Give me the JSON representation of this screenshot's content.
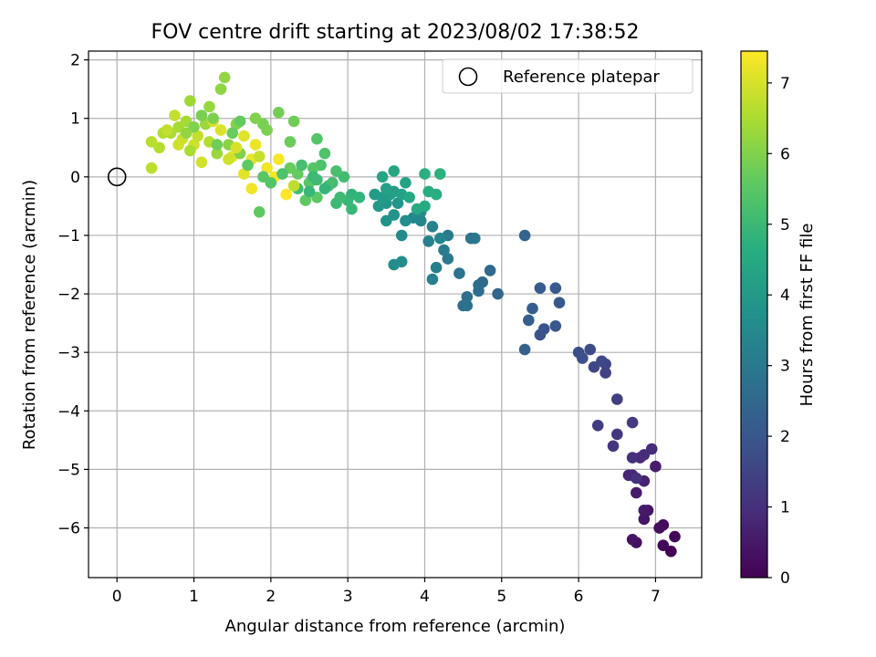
{
  "chart_data": {
    "type": "scatter",
    "title": "FOV centre drift starting at 2023/08/02 17:38:52",
    "xlabel": "Angular distance from reference (arcmin)",
    "ylabel": "Rotation from reference (arcmin)",
    "xlim": [
      -0.37,
      7.6
    ],
    "ylim": [
      -6.85,
      2.15
    ],
    "xticks": [
      0,
      1,
      2,
      3,
      4,
      5,
      6,
      7
    ],
    "yticks": [
      2,
      1,
      0,
      -1,
      -2,
      -3,
      -4,
      -5,
      -6
    ],
    "grid": true,
    "legend": {
      "placement": "top-right",
      "entries": [
        "Reference platepar"
      ]
    },
    "reference_point": {
      "x": 0,
      "y": 0,
      "label": "Reference platepar"
    },
    "colorbar": {
      "label": "Hours from first FF file",
      "range": [
        0,
        7.45
      ],
      "ticks": [
        0,
        1,
        2,
        3,
        4,
        5,
        6,
        7
      ],
      "colormap": "viridis"
    },
    "points": [
      {
        "x": 7.2,
        "y": -6.4,
        "c": 0.0
      },
      {
        "x": 7.25,
        "y": -6.15,
        "c": 0.1
      },
      {
        "x": 7.1,
        "y": -6.3,
        "c": 0.15
      },
      {
        "x": 7.1,
        "y": -5.95,
        "c": 0.2
      },
      {
        "x": 7.05,
        "y": -6.0,
        "c": 0.25
      },
      {
        "x": 6.75,
        "y": -6.25,
        "c": 0.3
      },
      {
        "x": 6.7,
        "y": -6.2,
        "c": 0.35
      },
      {
        "x": 6.9,
        "y": -5.7,
        "c": 0.4
      },
      {
        "x": 6.85,
        "y": -5.85,
        "c": 0.45
      },
      {
        "x": 6.85,
        "y": -5.7,
        "c": 0.5
      },
      {
        "x": 6.75,
        "y": -5.4,
        "c": 0.55
      },
      {
        "x": 7.0,
        "y": -4.95,
        "c": 0.6
      },
      {
        "x": 6.85,
        "y": -5.2,
        "c": 0.7
      },
      {
        "x": 6.7,
        "y": -5.1,
        "c": 0.75
      },
      {
        "x": 6.65,
        "y": -5.1,
        "c": 0.8
      },
      {
        "x": 6.8,
        "y": -4.8,
        "c": 0.85
      },
      {
        "x": 6.95,
        "y": -4.65,
        "c": 0.9
      },
      {
        "x": 6.85,
        "y": -4.75,
        "c": 0.95
      },
      {
        "x": 6.7,
        "y": -4.8,
        "c": 1.0
      },
      {
        "x": 6.75,
        "y": -5.15,
        "c": 1.05
      },
      {
        "x": 6.45,
        "y": -4.6,
        "c": 1.1
      },
      {
        "x": 6.5,
        "y": -4.4,
        "c": 1.2
      },
      {
        "x": 6.7,
        "y": -4.2,
        "c": 1.25
      },
      {
        "x": 6.25,
        "y": -4.25,
        "c": 1.3
      },
      {
        "x": 6.5,
        "y": -3.8,
        "c": 1.35
      },
      {
        "x": 6.35,
        "y": -3.35,
        "c": 1.45
      },
      {
        "x": 6.35,
        "y": -3.2,
        "c": 1.5
      },
      {
        "x": 6.2,
        "y": -3.25,
        "c": 1.55
      },
      {
        "x": 6.3,
        "y": -3.15,
        "c": 1.6
      },
      {
        "x": 6.15,
        "y": -2.95,
        "c": 1.7
      },
      {
        "x": 6.0,
        "y": -3.0,
        "c": 1.75
      },
      {
        "x": 6.05,
        "y": -3.1,
        "c": 1.8
      },
      {
        "x": 5.5,
        "y": -2.7,
        "c": 1.85
      },
      {
        "x": 5.55,
        "y": -2.6,
        "c": 1.9
      },
      {
        "x": 5.7,
        "y": -2.55,
        "c": 2.0
      },
      {
        "x": 5.75,
        "y": -2.15,
        "c": 2.05
      },
      {
        "x": 5.7,
        "y": -1.9,
        "c": 2.1
      },
      {
        "x": 5.5,
        "y": -1.9,
        "c": 2.15
      },
      {
        "x": 5.4,
        "y": -2.25,
        "c": 2.2
      },
      {
        "x": 5.35,
        "y": -2.45,
        "c": 2.25
      },
      {
        "x": 5.3,
        "y": -2.95,
        "c": 2.3
      },
      {
        "x": 5.3,
        "y": -1.0,
        "c": 2.4
      },
      {
        "x": 4.95,
        "y": -2.0,
        "c": 2.45
      },
      {
        "x": 4.85,
        "y": -1.6,
        "c": 2.5
      },
      {
        "x": 4.75,
        "y": -1.8,
        "c": 2.55
      },
      {
        "x": 4.7,
        "y": -1.85,
        "c": 2.6
      },
      {
        "x": 4.7,
        "y": -1.95,
        "c": 2.65
      },
      {
        "x": 4.55,
        "y": -2.05,
        "c": 2.7
      },
      {
        "x": 4.5,
        "y": -2.2,
        "c": 2.75
      },
      {
        "x": 4.55,
        "y": -2.2,
        "c": 2.8
      },
      {
        "x": 4.45,
        "y": -1.65,
        "c": 2.85
      },
      {
        "x": 4.6,
        "y": -1.05,
        "c": 2.9
      },
      {
        "x": 4.65,
        "y": -1.05,
        "c": 2.95
      },
      {
        "x": 4.3,
        "y": -1.4,
        "c": 3.0
      },
      {
        "x": 4.25,
        "y": -1.25,
        "c": 3.05
      },
      {
        "x": 4.3,
        "y": -1.0,
        "c": 3.1
      },
      {
        "x": 4.15,
        "y": -1.55,
        "c": 3.15
      },
      {
        "x": 4.1,
        "y": -1.75,
        "c": 3.2
      },
      {
        "x": 4.05,
        "y": -1.1,
        "c": 3.25
      },
      {
        "x": 4.1,
        "y": -0.85,
        "c": 3.3
      },
      {
        "x": 4.2,
        "y": -1.05,
        "c": 3.35
      },
      {
        "x": 3.95,
        "y": -0.75,
        "c": 3.4
      },
      {
        "x": 3.85,
        "y": -0.7,
        "c": 3.45
      },
      {
        "x": 3.95,
        "y": -0.6,
        "c": 3.5
      },
      {
        "x": 3.7,
        "y": -1.0,
        "c": 3.55
      },
      {
        "x": 3.6,
        "y": -1.5,
        "c": 3.6
      },
      {
        "x": 3.7,
        "y": -1.45,
        "c": 3.65
      },
      {
        "x": 3.75,
        "y": -0.75,
        "c": 3.7
      },
      {
        "x": 3.6,
        "y": -0.65,
        "c": 3.75
      },
      {
        "x": 3.5,
        "y": -0.75,
        "c": 3.8
      },
      {
        "x": 3.65,
        "y": -0.45,
        "c": 3.85
      },
      {
        "x": 3.5,
        "y": -0.45,
        "c": 3.9
      },
      {
        "x": 3.4,
        "y": -0.5,
        "c": 3.95
      },
      {
        "x": 3.45,
        "y": -0.35,
        "c": 4.0
      },
      {
        "x": 3.35,
        "y": -0.3,
        "c": 4.05
      },
      {
        "x": 3.55,
        "y": -0.3,
        "c": 4.1
      },
      {
        "x": 3.6,
        "y": -0.25,
        "c": 4.15
      },
      {
        "x": 3.5,
        "y": -0.2,
        "c": 4.2
      },
      {
        "x": 3.7,
        "y": -0.3,
        "c": 4.25
      },
      {
        "x": 3.75,
        "y": -0.1,
        "c": 4.3
      },
      {
        "x": 3.45,
        "y": 0.0,
        "c": 4.35
      },
      {
        "x": 3.6,
        "y": 0.1,
        "c": 4.4
      },
      {
        "x": 3.8,
        "y": -0.35,
        "c": 4.45
      },
      {
        "x": 3.9,
        "y": -0.55,
        "c": 4.5
      },
      {
        "x": 4.0,
        "y": -0.5,
        "c": 4.55
      },
      {
        "x": 4.05,
        "y": -0.25,
        "c": 4.6
      },
      {
        "x": 4.15,
        "y": -0.3,
        "c": 4.65
      },
      {
        "x": 4.0,
        "y": 0.05,
        "c": 4.7
      },
      {
        "x": 4.2,
        "y": 0.05,
        "c": 4.75
      },
      {
        "x": 3.05,
        "y": -0.3,
        "c": 4.8
      },
      {
        "x": 3.15,
        "y": -0.35,
        "c": 4.85
      },
      {
        "x": 3.0,
        "y": -0.4,
        "c": 4.9
      },
      {
        "x": 3.05,
        "y": -0.55,
        "c": 4.95
      },
      {
        "x": 2.85,
        "y": -0.45,
        "c": 5.0
      },
      {
        "x": 2.9,
        "y": -0.35,
        "c": 5.05
      },
      {
        "x": 2.95,
        "y": 0.0,
        "c": 5.1
      },
      {
        "x": 2.8,
        "y": -0.1,
        "c": 5.15
      },
      {
        "x": 2.75,
        "y": -0.15,
        "c": 5.2
      },
      {
        "x": 2.85,
        "y": 0.1,
        "c": 5.25
      },
      {
        "x": 2.65,
        "y": 0.2,
        "c": 5.3
      },
      {
        "x": 2.7,
        "y": 0.4,
        "c": 5.35
      },
      {
        "x": 2.6,
        "y": 0.65,
        "c": 5.4
      },
      {
        "x": 2.55,
        "y": 0.15,
        "c": 5.45
      },
      {
        "x": 2.5,
        "y": -0.1,
        "c": 5.5
      },
      {
        "x": 2.6,
        "y": -0.35,
        "c": 5.55
      },
      {
        "x": 2.45,
        "y": -0.4,
        "c": 5.6
      },
      {
        "x": 2.35,
        "y": 0.05,
        "c": 5.65
      },
      {
        "x": 2.25,
        "y": 0.15,
        "c": 5.7
      },
      {
        "x": 2.25,
        "y": 0.6,
        "c": 5.75
      },
      {
        "x": 2.3,
        "y": 0.95,
        "c": 5.8
      },
      {
        "x": 2.1,
        "y": 1.1,
        "c": 5.85
      },
      {
        "x": 1.9,
        "y": 0.9,
        "c": 5.9
      },
      {
        "x": 1.95,
        "y": 0.8,
        "c": 5.95
      },
      {
        "x": 1.8,
        "y": 1.0,
        "c": 6.0
      },
      {
        "x": 1.55,
        "y": 0.9,
        "c": 6.05
      },
      {
        "x": 1.45,
        "y": 0.55,
        "c": 6.1
      },
      {
        "x": 1.35,
        "y": 1.5,
        "c": 6.15
      },
      {
        "x": 1.4,
        "y": 1.7,
        "c": 6.2
      },
      {
        "x": 1.2,
        "y": 1.2,
        "c": 6.25
      },
      {
        "x": 1.15,
        "y": 0.9,
        "c": 6.3
      },
      {
        "x": 0.95,
        "y": 1.3,
        "c": 6.35
      },
      {
        "x": 0.9,
        "y": 0.95,
        "c": 6.4
      },
      {
        "x": 0.8,
        "y": 0.85,
        "c": 6.45
      },
      {
        "x": 0.7,
        "y": 0.75,
        "c": 6.5
      },
      {
        "x": 0.6,
        "y": 0.75,
        "c": 6.55
      },
      {
        "x": 0.55,
        "y": 0.5,
        "c": 6.6
      },
      {
        "x": 0.45,
        "y": 0.6,
        "c": 6.65
      },
      {
        "x": 0.45,
        "y": 0.15,
        "c": 6.7
      },
      {
        "x": 0.65,
        "y": 0.8,
        "c": 6.75
      },
      {
        "x": 0.75,
        "y": 1.05,
        "c": 6.8
      },
      {
        "x": 0.85,
        "y": 0.65,
        "c": 6.85
      },
      {
        "x": 1.0,
        "y": 0.55,
        "c": 6.9
      },
      {
        "x": 1.1,
        "y": 0.25,
        "c": 6.95
      },
      {
        "x": 1.25,
        "y": 0.95,
        "c": 7.0
      },
      {
        "x": 1.35,
        "y": 0.8,
        "c": 7.05
      },
      {
        "x": 1.5,
        "y": 0.35,
        "c": 7.1
      },
      {
        "x": 1.65,
        "y": 0.05,
        "c": 7.15
      },
      {
        "x": 1.75,
        "y": 0.3,
        "c": 7.2
      },
      {
        "x": 1.8,
        "y": 0.55,
        "c": 7.25
      },
      {
        "x": 1.95,
        "y": 0.15,
        "c": 7.3
      },
      {
        "x": 2.05,
        "y": 0.0,
        "c": 7.35
      },
      {
        "x": 2.1,
        "y": 0.3,
        "c": 7.4
      },
      {
        "x": 2.2,
        "y": -0.3,
        "c": 7.45
      },
      {
        "x": 1.7,
        "y": 0.2,
        "c": 5.6
      },
      {
        "x": 1.9,
        "y": 0.0,
        "c": 5.5
      },
      {
        "x": 2.0,
        "y": -0.1,
        "c": 5.4
      },
      {
        "x": 1.6,
        "y": 0.4,
        "c": 6.0
      },
      {
        "x": 1.3,
        "y": 0.4,
        "c": 6.3
      },
      {
        "x": 1.2,
        "y": 0.6,
        "c": 6.6
      },
      {
        "x": 1.05,
        "y": 0.7,
        "c": 6.8
      },
      {
        "x": 0.95,
        "y": 0.45,
        "c": 6.5
      },
      {
        "x": 0.8,
        "y": 0.55,
        "c": 6.9
      },
      {
        "x": 1.85,
        "y": -0.6,
        "c": 5.6
      },
      {
        "x": 2.15,
        "y": 0.05,
        "c": 5.3
      },
      {
        "x": 2.4,
        "y": 0.2,
        "c": 5.2
      },
      {
        "x": 2.55,
        "y": 0.0,
        "c": 5.0
      },
      {
        "x": 2.7,
        "y": -0.2,
        "c": 4.9
      },
      {
        "x": 2.5,
        "y": -0.25,
        "c": 4.95
      },
      {
        "x": 2.6,
        "y": -0.05,
        "c": 5.05
      },
      {
        "x": 2.35,
        "y": -0.2,
        "c": 5.1
      },
      {
        "x": 1.75,
        "y": -0.2,
        "c": 7.3
      },
      {
        "x": 1.55,
        "y": 0.5,
        "c": 7.0
      },
      {
        "x": 1.65,
        "y": 0.7,
        "c": 7.1
      },
      {
        "x": 1.85,
        "y": 0.35,
        "c": 6.8
      },
      {
        "x": 1.45,
        "y": 0.3,
        "c": 6.9
      },
      {
        "x": 2.3,
        "y": -0.15,
        "c": 6.7
      },
      {
        "x": 1.0,
        "y": 0.85,
        "c": 6.0
      },
      {
        "x": 1.1,
        "y": 1.05,
        "c": 5.9
      },
      {
        "x": 0.9,
        "y": 0.75,
        "c": 6.2
      },
      {
        "x": 1.3,
        "y": 0.55,
        "c": 5.8
      },
      {
        "x": 1.5,
        "y": 0.75,
        "c": 5.7
      },
      {
        "x": 1.6,
        "y": 0.95,
        "c": 5.65
      },
      {
        "x": 1.25,
        "y": 1.0,
        "c": 5.95
      }
    ]
  }
}
